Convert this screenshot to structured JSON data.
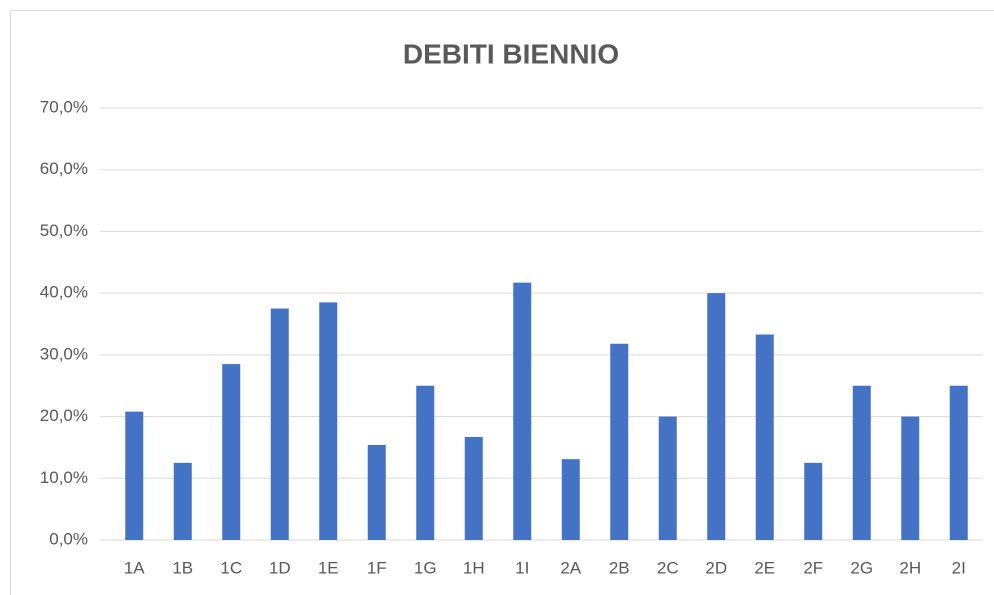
{
  "chart_data": {
    "type": "bar",
    "title": "DEBITI BIENNIO",
    "categories": [
      "1A",
      "1B",
      "1C",
      "1D",
      "1E",
      "1F",
      "1G",
      "1H",
      "1I",
      "2A",
      "2B",
      "2C",
      "2D",
      "2E",
      "2F",
      "2G",
      "2H",
      "2I"
    ],
    "values": [
      20.8,
      12.5,
      28.5,
      37.5,
      38.5,
      15.4,
      25,
      16.7,
      41.7,
      13.1,
      31.8,
      20,
      40,
      33.3,
      12.5,
      25,
      20,
      25
    ],
    "color": "#4472c4",
    "ylim": [
      0,
      70
    ],
    "yticks": [
      {
        "value": 0,
        "label": "0,0%"
      },
      {
        "value": 10,
        "label": "10,0%"
      },
      {
        "value": 20,
        "label": "20,0%"
      },
      {
        "value": 30,
        "label": "30,0%"
      },
      {
        "value": 40,
        "label": "40,0%"
      },
      {
        "value": 50,
        "label": "50,0%"
      },
      {
        "value": 60,
        "label": "60,0%"
      },
      {
        "value": 70,
        "label": "70,0%"
      }
    ],
    "grid": true
  }
}
